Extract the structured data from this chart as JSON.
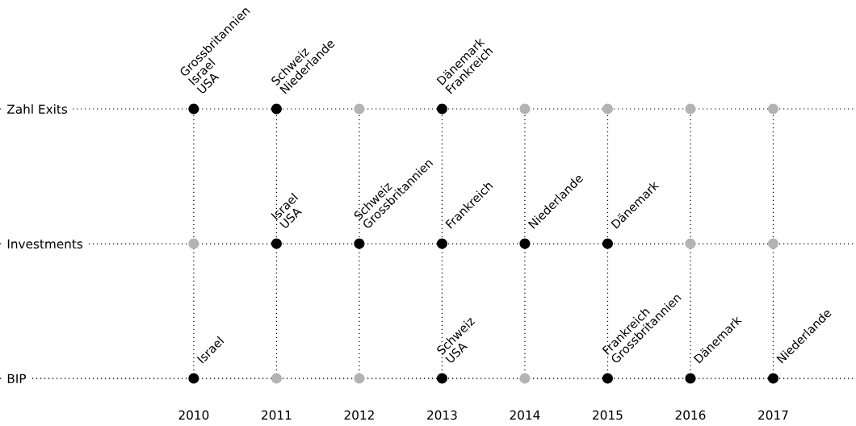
{
  "chart_data": {
    "type": "scatter",
    "orientation": "horizontal",
    "categories": [
      "Zahl Exits",
      "Investments",
      "BIP"
    ],
    "xlim": [
      2007.66,
      2018.0
    ],
    "xticks": [
      2010,
      2011,
      2012,
      2013,
      2014,
      2015,
      2016,
      2017
    ],
    "grid": true,
    "line_style": "dotted",
    "marker": "circle",
    "series": [
      {
        "values": [
          2010,
          2010,
          2010
        ],
        "colors": [
          "#000000",
          "#b3b3b3",
          "#000000"
        ]
      },
      {
        "values": [
          2011,
          2011,
          2011
        ],
        "colors": [
          "#000000",
          "#000000",
          "#b3b3b3"
        ]
      },
      {
        "values": [
          2012,
          2012,
          2012
        ],
        "colors": [
          "#b3b3b3",
          "#000000",
          "#b3b3b3"
        ]
      },
      {
        "values": [
          2013,
          2013,
          2013
        ],
        "colors": [
          "#000000",
          "#000000",
          "#000000"
        ]
      },
      {
        "values": [
          2014,
          2014,
          2014
        ],
        "colors": [
          "#b3b3b3",
          "#000000",
          "#b3b3b3"
        ]
      },
      {
        "values": [
          2015,
          2015,
          2015
        ],
        "colors": [
          "#b3b3b3",
          "#000000",
          "#000000"
        ]
      },
      {
        "values": [
          2016,
          2016,
          2016
        ],
        "colors": [
          "#b3b3b3",
          "#b3b3b3",
          "#000000"
        ]
      },
      {
        "values": [
          2017,
          2017,
          2017
        ],
        "colors": [
          "#b3b3b3",
          "#b3b3b3",
          "#000000"
        ]
      }
    ],
    "annotations": [
      {
        "text": "Grossbritannien\nIsrael\nUSA",
        "x": 2010,
        "y": "Zahl Exits"
      },
      {
        "text": "Schweiz\nNiederlande",
        "x": 2011,
        "y": "Zahl Exits"
      },
      {
        "text": "Dänemark\nFrankreich",
        "x": 2013,
        "y": "Zahl Exits"
      },
      {
        "text": "Israel\nUSA",
        "x": 2011,
        "y": "Investments"
      },
      {
        "text": "Schweiz\nGrossbritannien",
        "x": 2012,
        "y": "Investments"
      },
      {
        "text": "Frankreich",
        "x": 2013,
        "y": "Investments"
      },
      {
        "text": "Niederlande",
        "x": 2014,
        "y": "Investments"
      },
      {
        "text": "Dänemark",
        "x": 2015,
        "y": "Investments"
      },
      {
        "text": "Israel",
        "x": 2010,
        "y": "BIP"
      },
      {
        "text": "Schweiz\nUSA",
        "x": 2013,
        "y": "BIP"
      },
      {
        "text": "Frankreich\nGrossbritannien",
        "x": 2015,
        "y": "BIP"
      },
      {
        "text": "Dänemark",
        "x": 2016,
        "y": "BIP"
      },
      {
        "text": "Niederlande",
        "x": 2017,
        "y": "BIP"
      }
    ]
  }
}
